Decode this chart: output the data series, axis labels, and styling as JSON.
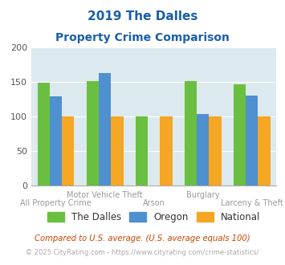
{
  "title_line1": "2019 The Dalles",
  "title_line2": "Property Crime Comparison",
  "categories": [
    "All Property Crime",
    "Motor Vehicle Theft",
    "Arson",
    "Burglary",
    "Larceny & Theft"
  ],
  "the_dalles": [
    149,
    152,
    100,
    152,
    147
  ],
  "oregon": [
    129,
    163,
    0,
    104,
    130
  ],
  "national": [
    100,
    100,
    100,
    100,
    100
  ],
  "color_dalles": "#6abf40",
  "color_oregon": "#4f90d0",
  "color_national": "#f5a623",
  "ylim": [
    0,
    200
  ],
  "yticks": [
    0,
    50,
    100,
    150,
    200
  ],
  "background_color": "#dce9ee",
  "title_color": "#1a5fa8",
  "xlabel_color": "#999999",
  "legend_labels": [
    "The Dalles",
    "Oregon",
    "National"
  ],
  "footnote1": "Compared to U.S. average. (U.S. average equals 100)",
  "footnote2": "© 2025 CityRating.com - https://www.cityrating.com/crime-statistics/",
  "footnote1_color": "#cc4400",
  "footnote2_color": "#aaaaaa"
}
